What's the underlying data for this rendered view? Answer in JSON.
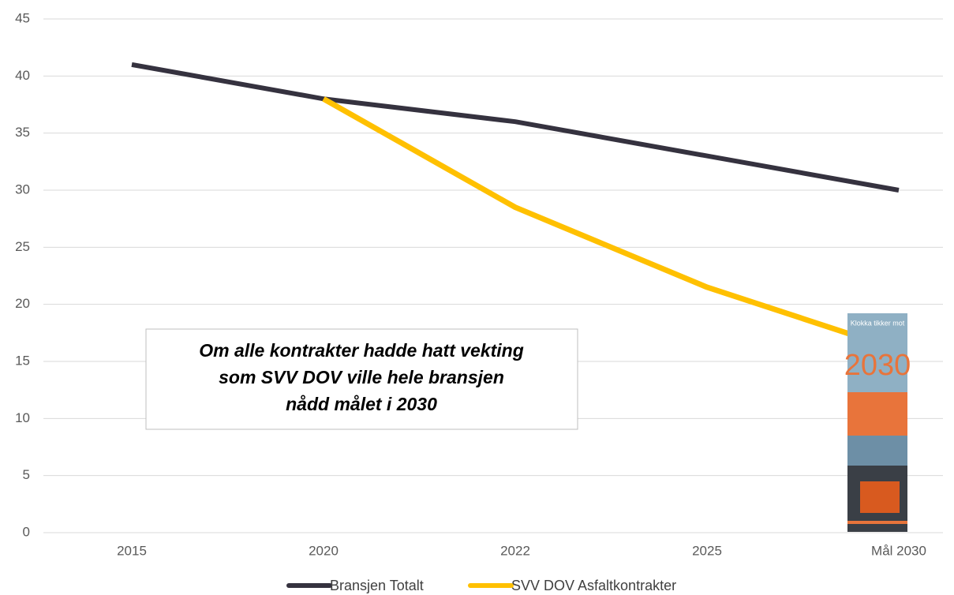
{
  "chart_data": {
    "type": "line",
    "categories": [
      "2015",
      "2020",
      "2022",
      "2025",
      "Mål 2030"
    ],
    "series": [
      {
        "name": "Bransjen Totalt",
        "color": "#35323f",
        "values": [
          41,
          38,
          36,
          33,
          30
        ]
      },
      {
        "name": "SVV DOV Asfaltkontrakter",
        "color": "#ffc000",
        "values": [
          null,
          38,
          28.5,
          21.5,
          16
        ]
      }
    ],
    "ylim": [
      0,
      45
    ],
    "yticks": [
      0,
      5,
      10,
      15,
      20,
      25,
      30,
      35,
      40,
      45
    ],
    "grid": true,
    "legend": "bottom",
    "annotation": [
      "Om alle kontrakter hadde hatt vekting",
      "som SVV DOV ville hele bransjen",
      "nådd målet i 2030"
    ],
    "cover": {
      "title": "Klokka tikker mot",
      "year": "2030"
    }
  }
}
